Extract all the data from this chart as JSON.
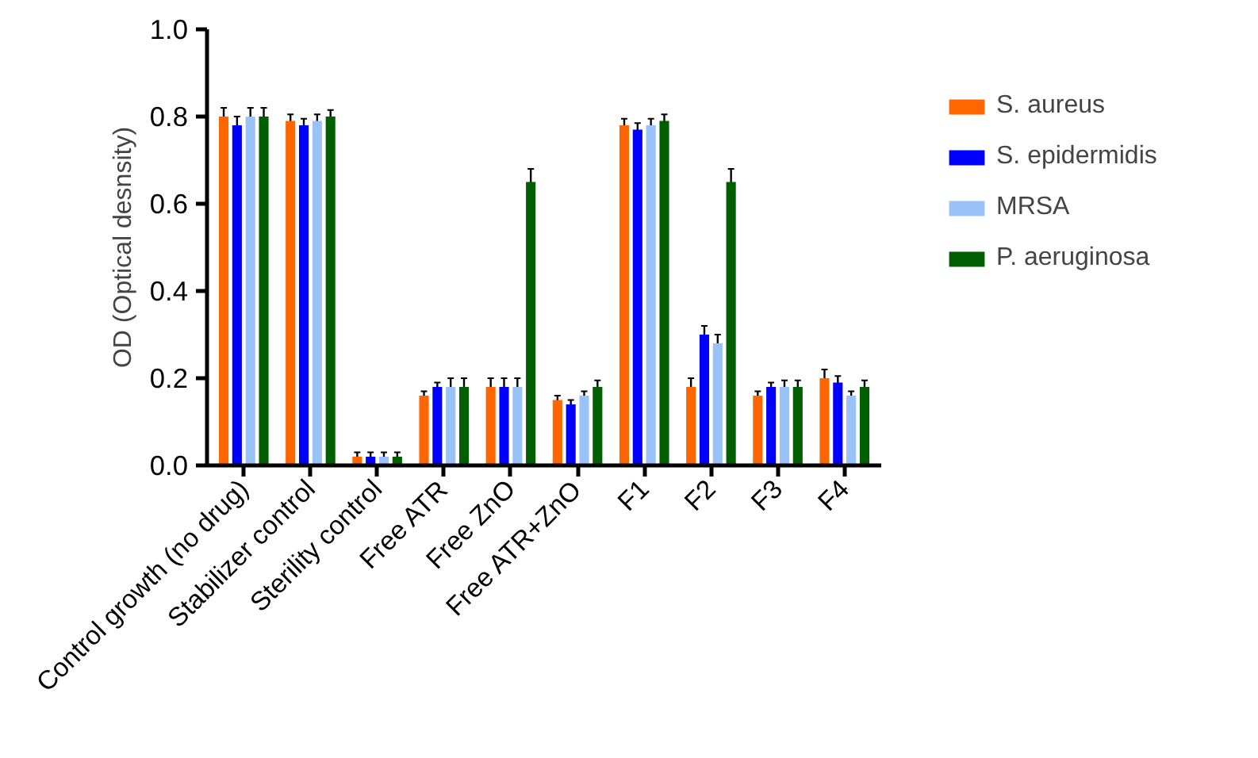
{
  "chart_data": {
    "type": "bar",
    "ylabel": "OD (Optical desnsity)",
    "categories": [
      "Control growth (no drug)",
      "Stabilizer control",
      "Sterility control",
      "Free ATR",
      "Free ZnO",
      "Free ATR+ZnO",
      "F1",
      "F2",
      "F3",
      "F4"
    ],
    "series": [
      {
        "name": "S. aureus",
        "color": "#ff6600",
        "values": [
          0.8,
          0.79,
          0.02,
          0.16,
          0.18,
          0.15,
          0.78,
          0.18,
          0.16,
          0.2
        ],
        "errors": [
          0.02,
          0.015,
          0.01,
          0.01,
          0.02,
          0.01,
          0.015,
          0.02,
          0.01,
          0.02
        ]
      },
      {
        "name": "S. epidermidis",
        "color": "#0000ff",
        "values": [
          0.78,
          0.78,
          0.02,
          0.18,
          0.18,
          0.14,
          0.77,
          0.3,
          0.18,
          0.19
        ],
        "errors": [
          0.02,
          0.015,
          0.01,
          0.01,
          0.02,
          0.01,
          0.015,
          0.02,
          0.01,
          0.015
        ]
      },
      {
        "name": "MRSA",
        "color": "#99c2f8",
        "values": [
          0.8,
          0.79,
          0.02,
          0.18,
          0.18,
          0.16,
          0.78,
          0.28,
          0.18,
          0.16
        ],
        "errors": [
          0.02,
          0.015,
          0.01,
          0.02,
          0.02,
          0.01,
          0.015,
          0.02,
          0.015,
          0.01
        ]
      },
      {
        "name": "P. aeruginosa",
        "color": "#005f00",
        "values": [
          0.8,
          0.8,
          0.02,
          0.18,
          0.65,
          0.18,
          0.79,
          0.65,
          0.18,
          0.18
        ],
        "errors": [
          0.02,
          0.015,
          0.01,
          0.02,
          0.03,
          0.015,
          0.015,
          0.03,
          0.015,
          0.015
        ]
      }
    ],
    "ylim": [
      0,
      1.0
    ],
    "yticks": [
      {
        "value": 0,
        "label": "0.0"
      },
      {
        "value": 0.2,
        "label": "0.2"
      },
      {
        "value": 0.4,
        "label": "0.4"
      },
      {
        "value": 0.6,
        "label": "0.6"
      },
      {
        "value": 0.8,
        "label": "0.8"
      },
      {
        "value": 1.0,
        "label": "1.0"
      }
    ],
    "grid": false,
    "legend": "top right"
  }
}
